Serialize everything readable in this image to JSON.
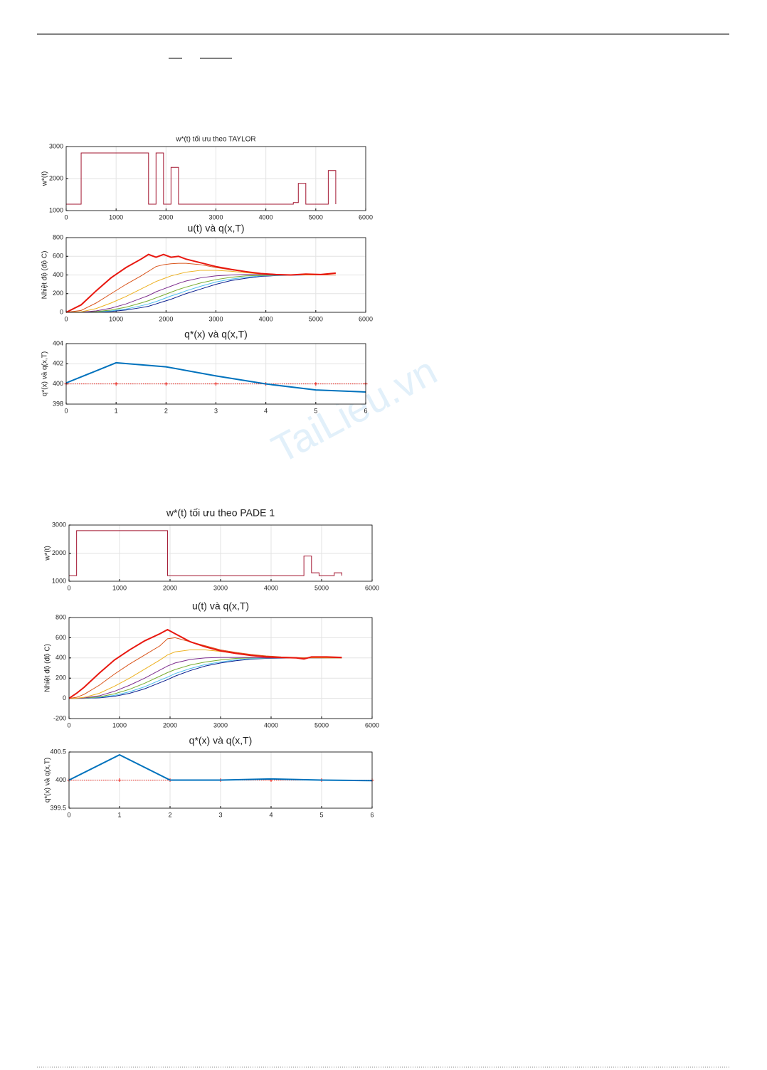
{
  "watermark": "TaiLieu.vn",
  "chart_data": [
    {
      "type": "line",
      "title": "w*(t) tối ưu theo TAYLOR",
      "ylabel": "w*(t)",
      "xlim": [
        0,
        6000
      ],
      "xticks": [
        0,
        1000,
        2000,
        3000,
        4000,
        5000,
        6000
      ],
      "ylim": [
        1000,
        3000
      ],
      "yticks": [
        1000,
        2000,
        3000
      ],
      "grid": true,
      "x": [
        0,
        300,
        300,
        1650,
        1650,
        1800,
        1800,
        1950,
        1950,
        2100,
        2100,
        2250,
        2250,
        4550,
        4550,
        4650,
        4650,
        4800,
        4800,
        5250,
        5250,
        5400,
        5400
      ],
      "series": [
        {
          "color": "#a2142f",
          "values": [
            1200,
            1200,
            2800,
            2800,
            1200,
            1200,
            2800,
            2800,
            1200,
            1200,
            2350,
            2350,
            1200,
            1200,
            1250,
            1250,
            1850,
            1850,
            1200,
            1200,
            2250,
            2250,
            1200
          ]
        }
      ]
    },
    {
      "type": "line",
      "title": "u(t) và q(x,T)",
      "ylabel": "Nhiệt độ (độ C)",
      "xlim": [
        0,
        6000
      ],
      "xticks": [
        0,
        1000,
        2000,
        3000,
        4000,
        5000,
        6000
      ],
      "ylim": [
        0,
        800
      ],
      "yticks": [
        0,
        200,
        400,
        600,
        800
      ],
      "grid": true,
      "x": [
        0,
        300,
        600,
        900,
        1200,
        1500,
        1650,
        1800,
        1950,
        2100,
        2250,
        2400,
        2700,
        3000,
        3300,
        3600,
        3900,
        4200,
        4500,
        4800,
        5100,
        5400
      ],
      "series": [
        {
          "color": "#0b1f8f",
          "values": [
            0,
            0,
            3,
            10,
            25,
            50,
            65,
            90,
            115,
            140,
            170,
            200,
            250,
            300,
            340,
            365,
            385,
            393,
            397,
            400,
            400,
            400
          ]
        },
        {
          "color": "#4dbeee",
          "values": [
            0,
            0,
            5,
            15,
            35,
            70,
            90,
            115,
            145,
            175,
            200,
            230,
            280,
            325,
            355,
            375,
            390,
            395,
            398,
            400,
            400,
            400
          ]
        },
        {
          "color": "#77ac30",
          "values": [
            0,
            0,
            8,
            25,
            55,
            100,
            125,
            155,
            185,
            215,
            245,
            270,
            315,
            350,
            375,
            390,
            395,
            398,
            400,
            400,
            400,
            400
          ]
        },
        {
          "color": "#7e2f8e",
          "values": [
            0,
            2,
            15,
            45,
            90,
            150,
            180,
            220,
            250,
            280,
            310,
            335,
            370,
            390,
            400,
            405,
            405,
            400,
            400,
            400,
            400,
            400
          ]
        },
        {
          "color": "#edb120",
          "values": [
            0,
            5,
            40,
            100,
            170,
            250,
            290,
            330,
            360,
            390,
            410,
            430,
            450,
            450,
            440,
            425,
            410,
            405,
            400,
            400,
            400,
            400
          ]
        },
        {
          "color": "#d95319",
          "values": [
            0,
            20,
            100,
            200,
            300,
            390,
            440,
            490,
            510,
            520,
            525,
            525,
            510,
            480,
            455,
            435,
            415,
            405,
            400,
            405,
            400,
            400
          ]
        },
        {
          "color": "#e8170f",
          "width": 2,
          "values": [
            0,
            80,
            230,
            370,
            480,
            570,
            620,
            590,
            620,
            590,
            600,
            570,
            530,
            490,
            460,
            435,
            415,
            405,
            400,
            410,
            405,
            420
          ]
        }
      ]
    },
    {
      "type": "line",
      "title": "q*(x) và q(x,T)",
      "ylabel": "q*(x) và q(x,T)",
      "xlim": [
        0,
        6
      ],
      "xticks": [
        0,
        1,
        2,
        3,
        4,
        5,
        6
      ],
      "ylim": [
        398,
        404
      ],
      "yticks": [
        398,
        400,
        402,
        404
      ],
      "grid": true,
      "x": [
        0,
        1,
        2,
        3,
        4,
        5,
        6
      ],
      "series": [
        {
          "color": "#e8170f",
          "line_style": "dotted",
          "marker": "+",
          "values": [
            400,
            400,
            400,
            400,
            400,
            400,
            400
          ]
        },
        {
          "color": "#0072bd",
          "width": 2,
          "values": [
            400.1,
            402.1,
            401.7,
            400.8,
            400,
            399.4,
            399.2
          ]
        }
      ]
    },
    {
      "type": "line",
      "title": "w*(t) tối ưu theo PADE 1",
      "ylabel": "w*(t)",
      "xlim": [
        0,
        6000
      ],
      "xticks": [
        0,
        1000,
        2000,
        3000,
        4000,
        5000,
        6000
      ],
      "ylim": [
        1000,
        3000
      ],
      "yticks": [
        1000,
        2000,
        3000
      ],
      "grid": true,
      "x": [
        0,
        150,
        150,
        1950,
        1950,
        4650,
        4650,
        4800,
        4800,
        4950,
        4950,
        5250,
        5250,
        5400,
        5400
      ],
      "series": [
        {
          "color": "#a2142f",
          "values": [
            1200,
            1200,
            2800,
            2800,
            1200,
            1200,
            1900,
            1900,
            1300,
            1300,
            1200,
            1200,
            1300,
            1300,
            1200
          ]
        }
      ]
    },
    {
      "type": "line",
      "title": "u(t) và q(x,T)",
      "ylabel": "Nhiệt độ (độ C)",
      "xlim": [
        0,
        6000
      ],
      "xticks": [
        0,
        1000,
        2000,
        3000,
        4000,
        5000,
        6000
      ],
      "ylim": [
        -200,
        800
      ],
      "yticks": [
        -200,
        0,
        200,
        400,
        600,
        800
      ],
      "grid": true,
      "x": [
        0,
        150,
        300,
        600,
        900,
        1200,
        1500,
        1800,
        1950,
        2100,
        2400,
        2700,
        3000,
        3300,
        3600,
        3900,
        4200,
        4500,
        4650,
        4800,
        5100,
        5400
      ],
      "series": [
        {
          "color": "#0b1f8f",
          "values": [
            0,
            0,
            0,
            5,
            20,
            50,
            95,
            155,
            185,
            220,
            275,
            320,
            350,
            372,
            388,
            395,
            398,
            400,
            400,
            400,
            400,
            400
          ]
        },
        {
          "color": "#4dbeee",
          "values": [
            0,
            0,
            1,
            10,
            30,
            65,
            115,
            180,
            210,
            245,
            295,
            335,
            360,
            380,
            393,
            397,
            400,
            400,
            400,
            400,
            400,
            400
          ]
        },
        {
          "color": "#77ac30",
          "values": [
            0,
            0,
            2,
            15,
            45,
            90,
            150,
            220,
            255,
            285,
            330,
            360,
            380,
            395,
            400,
            400,
            400,
            400,
            400,
            400,
            400,
            400
          ]
        },
        {
          "color": "#7e2f8e",
          "values": [
            0,
            0,
            4,
            25,
            70,
            130,
            200,
            280,
            320,
            350,
            385,
            400,
            405,
            405,
            405,
            400,
            400,
            400,
            400,
            400,
            400,
            400
          ]
        },
        {
          "color": "#edb120",
          "values": [
            0,
            2,
            10,
            50,
            120,
            200,
            290,
            380,
            430,
            460,
            480,
            480,
            465,
            445,
            430,
            415,
            408,
            402,
            400,
            402,
            400,
            400
          ]
        },
        {
          "color": "#d95319",
          "values": [
            0,
            10,
            40,
            130,
            240,
            340,
            430,
            520,
            590,
            600,
            560,
            520,
            480,
            455,
            435,
            420,
            410,
            405,
            400,
            405,
            405,
            400
          ]
        },
        {
          "color": "#e8170f",
          "width": 2,
          "values": [
            0,
            50,
            110,
            250,
            380,
            480,
            570,
            640,
            680,
            640,
            560,
            510,
            470,
            445,
            425,
            410,
            405,
            400,
            390,
            410,
            410,
            405
          ]
        }
      ]
    },
    {
      "type": "line",
      "title": "q*(x) và q(x,T)",
      "ylabel": "q*(x) và q(x,T)",
      "xlim": [
        0,
        6
      ],
      "xticks": [
        0,
        1,
        2,
        3,
        4,
        5,
        6
      ],
      "ylim": [
        399.5,
        400.5
      ],
      "yticks": [
        399.5,
        400,
        400.5
      ],
      "grid": true,
      "x": [
        0,
        1,
        2,
        3,
        4,
        5,
        6
      ],
      "series": [
        {
          "color": "#e8170f",
          "line_style": "dotted",
          "marker": "+",
          "values": [
            400,
            400,
            400,
            400,
            400,
            400,
            400
          ]
        },
        {
          "color": "#0072bd",
          "width": 2,
          "values": [
            400,
            400.45,
            400,
            400,
            400.02,
            400,
            399.99
          ]
        }
      ]
    }
  ]
}
